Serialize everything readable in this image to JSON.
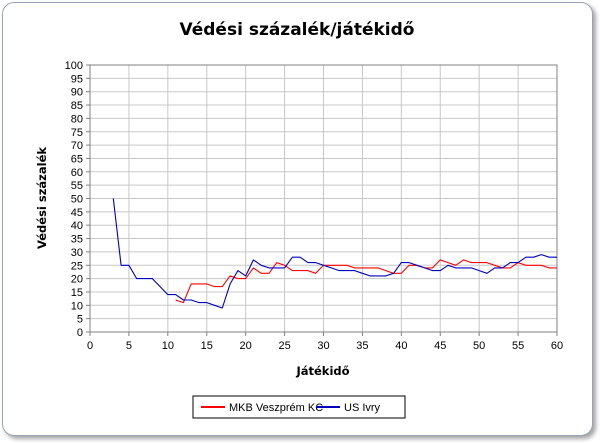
{
  "chart_data": {
    "type": "line",
    "title": "Védési százalék/játékidő",
    "xlabel": "Játékidő",
    "ylabel": "Védési százalék",
    "xlim": [
      0,
      60
    ],
    "ylim": [
      0,
      100
    ],
    "x_ticks": [
      0,
      5,
      10,
      15,
      20,
      25,
      30,
      35,
      40,
      45,
      50,
      55,
      60
    ],
    "y_ticks": [
      0,
      5,
      10,
      15,
      20,
      25,
      30,
      35,
      40,
      45,
      50,
      55,
      60,
      65,
      70,
      75,
      80,
      85,
      90,
      95,
      100
    ],
    "grid": true,
    "legend_position": "bottom",
    "series": [
      {
        "name": "MKB Veszprém KC",
        "color": "#ff0000",
        "x": [
          11,
          12,
          13,
          14,
          15,
          16,
          17,
          18,
          19,
          20,
          21,
          22,
          23,
          24,
          25,
          26,
          27,
          28,
          29,
          30,
          31,
          32,
          33,
          34,
          35,
          36,
          37,
          38,
          39,
          40,
          41,
          42,
          43,
          44,
          45,
          46,
          47,
          48,
          49,
          50,
          51,
          52,
          53,
          54,
          55,
          56,
          57,
          58,
          59,
          60
        ],
        "values": [
          12,
          11,
          18,
          18,
          18,
          17,
          17,
          21,
          20,
          20,
          24,
          22,
          22,
          26,
          25,
          23,
          23,
          23,
          22,
          25,
          25,
          25,
          25,
          24,
          24,
          24,
          24,
          23,
          22,
          22,
          25,
          25,
          24,
          24,
          27,
          26,
          25,
          27,
          26,
          26,
          26,
          25,
          24,
          24,
          26,
          25,
          25,
          25,
          24,
          24
        ]
      },
      {
        "name": "US Ivry",
        "color": "#0000c0",
        "x": [
          3,
          4,
          5,
          6,
          7,
          8,
          9,
          10,
          11,
          12,
          13,
          14,
          15,
          16,
          17,
          18,
          19,
          20,
          21,
          22,
          23,
          24,
          25,
          26,
          27,
          28,
          29,
          30,
          31,
          32,
          33,
          34,
          35,
          36,
          37,
          38,
          39,
          40,
          41,
          42,
          43,
          44,
          45,
          46,
          47,
          48,
          49,
          50,
          51,
          52,
          53,
          54,
          55,
          56,
          57,
          58,
          59,
          60
        ],
        "values": [
          50,
          25,
          25,
          20,
          20,
          20,
          17,
          14,
          14,
          12,
          12,
          11,
          11,
          10,
          9,
          18,
          23,
          21,
          27,
          25,
          24,
          24,
          24,
          28,
          28,
          26,
          26,
          25,
          24,
          23,
          23,
          23,
          22,
          21,
          21,
          21,
          22,
          26,
          26,
          25,
          24,
          23,
          23,
          25,
          24,
          24,
          24,
          23,
          22,
          24,
          24,
          26,
          26,
          28,
          28,
          29,
          28,
          28
        ]
      }
    ]
  }
}
